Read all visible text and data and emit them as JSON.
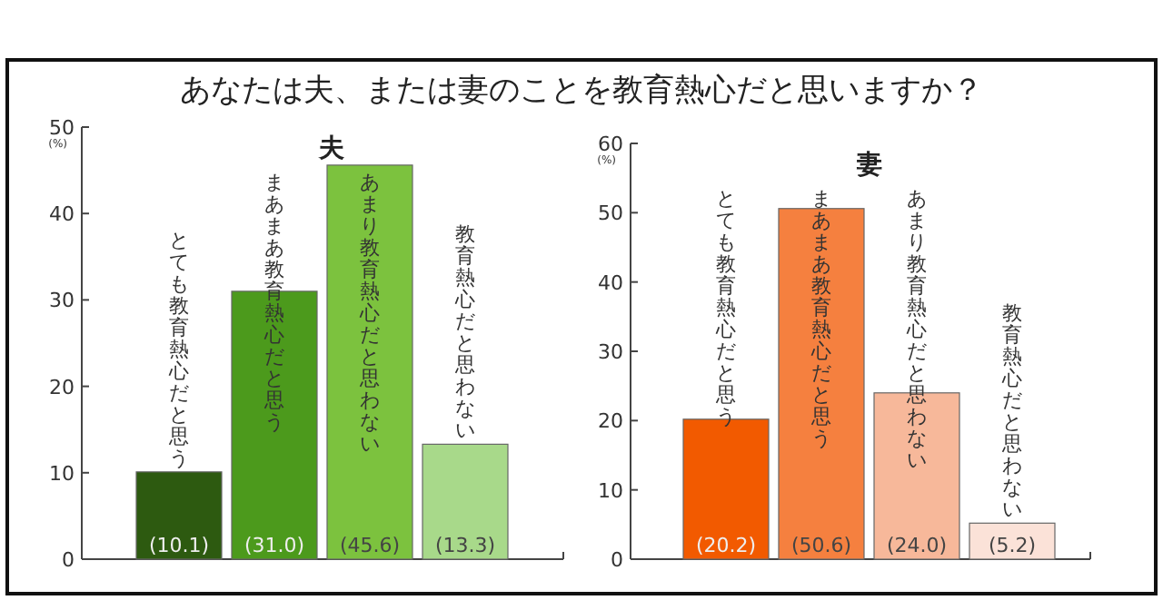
{
  "chart_data": [
    {
      "type": "bar",
      "title": "あなたは夫、または妻のことを教育熱心だと思いますか？",
      "subtitle": "夫",
      "ylabel": "(%)",
      "categories": [
        "とても教育熱心だと思う",
        "まあまあ教育熱心だと思う",
        "あまり教育熱心だと思わない",
        "教育熱心だと思わない"
      ],
      "values": [
        10.1,
        31.0,
        45.6,
        13.3
      ],
      "colors": [
        "#2d5a10",
        "#4c9a1c",
        "#7cc23e",
        "#a8d98a"
      ],
      "value_labels": [
        "(10.1)",
        "(31.0)",
        "(45.6)",
        "(13.3)"
      ],
      "ylim": [
        0,
        50
      ],
      "yticks": [
        0,
        10,
        20,
        30,
        40,
        50
      ]
    },
    {
      "type": "bar",
      "subtitle": "妻",
      "ylabel": "(%)",
      "categories": [
        "とても教育熱心だと思う",
        "まあまあ教育熱心だと思う",
        "あまり教育熱心だと思わない",
        "教育熱心だと思わない"
      ],
      "values": [
        20.2,
        50.6,
        24.0,
        5.2
      ],
      "colors": [
        "#f25a00",
        "#f5803f",
        "#f7b89a",
        "#fbe2d8"
      ],
      "value_labels": [
        "(20.2)",
        "(50.6)",
        "(24.0)",
        "(5.2)"
      ],
      "ylim": [
        0,
        60
      ],
      "yticks": [
        0,
        10,
        20,
        30,
        40,
        50,
        60
      ]
    }
  ]
}
